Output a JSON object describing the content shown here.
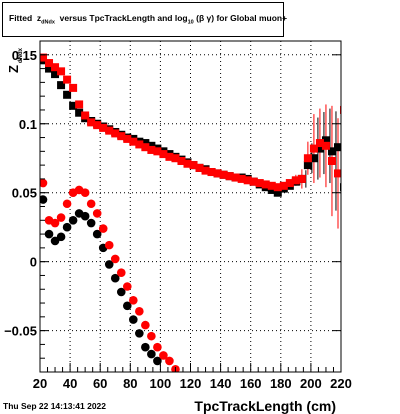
{
  "title": {
    "prefix": "Fitted",
    "z": "z",
    "sub_dNdx": "dNdx",
    "mid": "versus TpcTrackLength and log",
    "sub_10": "10",
    "beta_gamma": "(β  γ)",
    "suffix": "for Global muon+"
  },
  "footer_date": "Thu Sep 22 14:13:41 2022",
  "chart_data": {
    "type": "scatter",
    "xlabel": "TpcTrackLength (cm)",
    "ylabel": "Z",
    "ylabel_sub": "dNdx",
    "xlim": [
      20,
      220
    ],
    "ylim": [
      -0.08,
      0.16
    ],
    "x_ticks": [
      20,
      40,
      60,
      80,
      100,
      120,
      140,
      160,
      180,
      200,
      220
    ],
    "y_ticks": [
      -0.05,
      0,
      0.05,
      0.1,
      0.15
    ],
    "y_tick_labels": [
      "−0.05",
      "0",
      "0.05",
      "0.1",
      "0.15"
    ],
    "grid": true,
    "colors": {
      "black": "#000000",
      "red": "#ff0000"
    },
    "series": [
      {
        "marker": "square",
        "color": "#000000",
        "points": [
          [
            22,
            0.146
          ],
          [
            26,
            0.14
          ],
          [
            30,
            0.136
          ],
          [
            34,
            0.128
          ],
          [
            38,
            0.121
          ],
          [
            42,
            0.113
          ],
          [
            46,
            0.108
          ],
          [
            50,
            0.104
          ],
          [
            54,
            0.102
          ],
          [
            58,
            0.1
          ],
          [
            62,
            0.098
          ],
          [
            66,
            0.096
          ],
          [
            70,
            0.094
          ],
          [
            74,
            0.092
          ],
          [
            78,
            0.09
          ],
          [
            82,
            0.089
          ],
          [
            86,
            0.087
          ],
          [
            90,
            0.086
          ],
          [
            94,
            0.084
          ],
          [
            98,
            0.082
          ],
          [
            102,
            0.08
          ],
          [
            106,
            0.078
          ],
          [
            110,
            0.076
          ],
          [
            114,
            0.074
          ],
          [
            118,
            0.072
          ],
          [
            122,
            0.07
          ],
          [
            126,
            0.068
          ],
          [
            130,
            0.067
          ],
          [
            134,
            0.065
          ],
          [
            138,
            0.064
          ],
          [
            142,
            0.063
          ],
          [
            146,
            0.062
          ],
          [
            150,
            0.061
          ],
          [
            154,
            0.061
          ],
          [
            158,
            0.06
          ],
          [
            162,
            0.058
          ],
          [
            166,
            0.056
          ],
          [
            170,
            0.054
          ],
          [
            174,
            0.052
          ],
          [
            178,
            0.05
          ],
          [
            182,
            0.053
          ],
          [
            186,
            0.055
          ],
          [
            190,
            0.058
          ],
          [
            194,
            0.06
          ],
          [
            198,
            0.07
          ],
          [
            202,
            0.075
          ],
          [
            206,
            0.082
          ],
          [
            210,
            0.088
          ],
          [
            214,
            0.08
          ],
          [
            218,
            0.083
          ],
          [
            222,
            0.054
          ]
        ]
      },
      {
        "marker": "square",
        "color": "#ff0000",
        "points": [
          [
            22,
            0.148
          ],
          [
            26,
            0.144
          ],
          [
            30,
            0.141
          ],
          [
            34,
            0.138
          ],
          [
            38,
            0.132
          ],
          [
            42,
            0.126
          ],
          [
            46,
            0.114
          ],
          [
            50,
            0.106
          ],
          [
            54,
            0.101
          ],
          [
            58,
            0.099
          ],
          [
            62,
            0.097
          ],
          [
            66,
            0.095
          ],
          [
            70,
            0.093
          ],
          [
            74,
            0.091
          ],
          [
            78,
            0.089
          ],
          [
            82,
            0.087
          ],
          [
            86,
            0.085
          ],
          [
            90,
            0.083
          ],
          [
            94,
            0.081
          ],
          [
            98,
            0.08
          ],
          [
            102,
            0.078
          ],
          [
            106,
            0.076
          ],
          [
            110,
            0.075
          ],
          [
            114,
            0.073
          ],
          [
            118,
            0.071
          ],
          [
            122,
            0.07
          ],
          [
            126,
            0.068
          ],
          [
            130,
            0.066
          ],
          [
            134,
            0.065
          ],
          [
            138,
            0.064
          ],
          [
            142,
            0.063
          ],
          [
            146,
            0.062
          ],
          [
            150,
            0.061
          ],
          [
            154,
            0.06
          ],
          [
            158,
            0.059
          ],
          [
            162,
            0.058
          ],
          [
            166,
            0.057
          ],
          [
            170,
            0.056
          ],
          [
            174,
            0.055
          ],
          [
            178,
            0.054
          ],
          [
            182,
            0.055
          ],
          [
            186,
            0.057
          ],
          [
            190,
            0.059
          ],
          [
            194,
            0.06
          ],
          [
            198,
            0.075
          ],
          [
            202,
            0.082
          ],
          [
            206,
            0.086
          ],
          [
            210,
            0.084
          ],
          [
            214,
            0.073
          ],
          [
            218,
            0.064
          ],
          [
            222,
            0.11
          ]
        ]
      },
      {
        "marker": "circle",
        "color": "#000000",
        "points": [
          [
            22,
            0.045
          ],
          [
            26,
            0.02
          ],
          [
            30,
            0.015
          ],
          [
            34,
            0.018
          ],
          [
            38,
            0.025
          ],
          [
            42,
            0.03
          ],
          [
            46,
            0.035
          ],
          [
            50,
            0.033
          ],
          [
            54,
            0.028
          ],
          [
            58,
            0.02
          ],
          [
            62,
            0.01
          ],
          [
            66,
            -0.002
          ],
          [
            70,
            -0.012
          ],
          [
            74,
            -0.022
          ],
          [
            78,
            -0.032
          ],
          [
            82,
            -0.042
          ],
          [
            86,
            -0.052
          ],
          [
            90,
            -0.062
          ],
          [
            94,
            -0.067
          ],
          [
            98,
            -0.072
          ]
        ]
      },
      {
        "marker": "circle",
        "color": "#ff0000",
        "points": [
          [
            22,
            0.057
          ],
          [
            26,
            0.03
          ],
          [
            30,
            0.028
          ],
          [
            34,
            0.032
          ],
          [
            38,
            0.042
          ],
          [
            42,
            0.05
          ],
          [
            46,
            0.052
          ],
          [
            50,
            0.05
          ],
          [
            54,
            0.042
          ],
          [
            58,
            0.035
          ],
          [
            62,
            0.024
          ],
          [
            66,
            0.012
          ],
          [
            70,
            0.002
          ],
          [
            74,
            -0.008
          ],
          [
            78,
            -0.018
          ],
          [
            82,
            -0.028
          ],
          [
            86,
            -0.036
          ],
          [
            90,
            -0.046
          ],
          [
            94,
            -0.054
          ],
          [
            98,
            -0.062
          ],
          [
            102,
            -0.068
          ],
          [
            106,
            -0.072
          ],
          [
            110,
            -0.078
          ]
        ]
      }
    ],
    "error_bars": [
      {
        "x": 190,
        "y": 0.059,
        "err": 0.004
      },
      {
        "x": 194,
        "y": 0.06,
        "err": 0.007
      },
      {
        "x": 198,
        "y": 0.075,
        "err": 0.012
      },
      {
        "x": 202,
        "y": 0.082,
        "err": 0.025
      },
      {
        "x": 206,
        "y": 0.086,
        "err": 0.025
      },
      {
        "x": 210,
        "y": 0.084,
        "err": 0.03
      },
      {
        "x": 214,
        "y": 0.073,
        "err": 0.04
      },
      {
        "x": 218,
        "y": 0.064,
        "err": 0.04
      },
      {
        "x": 222,
        "y": 0.11,
        "err": 0.075
      }
    ]
  }
}
